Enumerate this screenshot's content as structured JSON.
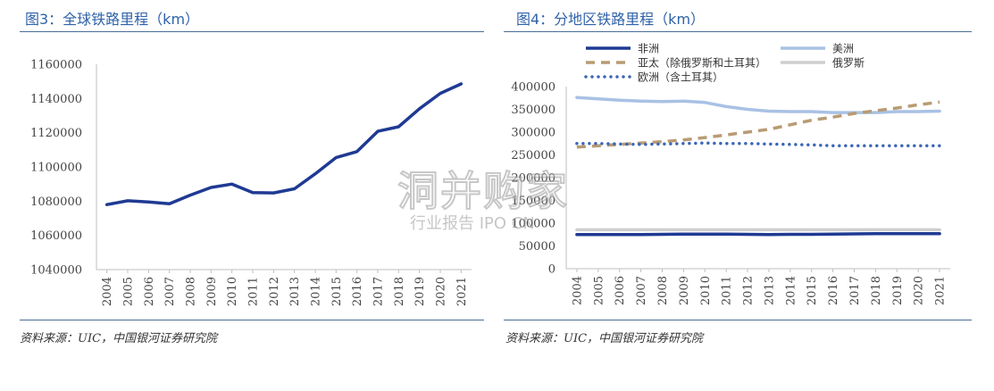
{
  "watermark": {
    "main": "洞并购家",
    "sub": "行业报告 IPO CN"
  },
  "chart_data": [
    {
      "type": "line",
      "title": "图3：全球铁路里程（km）",
      "source": "资料来源：UIC，中国银河证券研究院",
      "x": [
        "2004",
        "2005",
        "2006",
        "2007",
        "2008",
        "2009",
        "2010",
        "2011",
        "2012",
        "2013",
        "2014",
        "2015",
        "2016",
        "2017",
        "2018",
        "2019",
        "2020",
        "2021"
      ],
      "ylim": [
        1040000,
        1160000
      ],
      "yticks": [
        "1040000",
        "1060000",
        "1080000",
        "1100000",
        "1120000",
        "1140000",
        "1160000"
      ],
      "series": [
        {
          "name": "",
          "color": "#1f3a93",
          "values": [
            1078000,
            1080200,
            1079500,
            1078500,
            1083500,
            1088000,
            1090000,
            1085000,
            1084800,
            1087200,
            1096000,
            1105500,
            1109000,
            1120800,
            1123500,
            1134000,
            1143000,
            1148500
          ]
        }
      ],
      "grid": false,
      "legend": "none"
    },
    {
      "type": "line",
      "title": "图4：分地区铁路里程（km）",
      "source": "资料来源：UIC，中国银河证券研究院",
      "x": [
        "2004",
        "2005",
        "2006",
        "2007",
        "2008",
        "2009",
        "2010",
        "2011",
        "2012",
        "2013",
        "2014",
        "2015",
        "2016",
        "2017",
        "2018",
        "2019",
        "2020",
        "2021"
      ],
      "ylim": [
        0,
        400000
      ],
      "yticks": [
        "0",
        "50000",
        "100000",
        "150000",
        "200000",
        "250000",
        "300000",
        "350000",
        "400000"
      ],
      "legend": "top",
      "grid": false,
      "series": [
        {
          "name": "非洲",
          "color": "#1f3a93",
          "style": "solid",
          "values": [
            75000,
            75000,
            75000,
            75000,
            75500,
            76000,
            76000,
            76000,
            75500,
            75000,
            75500,
            75500,
            76000,
            76500,
            77000,
            77000,
            77000,
            77000
          ]
        },
        {
          "name": "美洲",
          "color": "#a9c1e4",
          "style": "solid",
          "values": [
            376000,
            373000,
            370000,
            368000,
            367000,
            368000,
            365000,
            356000,
            350000,
            346000,
            345000,
            345000,
            343000,
            343000,
            343000,
            345000,
            345000,
            346000
          ]
        },
        {
          "name": "亚太（除俄罗斯和土耳其）",
          "color": "#b89b74",
          "style": "dash",
          "values": [
            267000,
            270000,
            273000,
            276000,
            279000,
            283000,
            288000,
            294000,
            300000,
            306000,
            316000,
            326000,
            333000,
            341000,
            347000,
            353000,
            360000,
            366000
          ]
        },
        {
          "name": "俄罗斯",
          "color": "#cfcfcf",
          "style": "solid",
          "values": [
            85500,
            85500,
            85500,
            85500,
            85500,
            85500,
            85500,
            85500,
            85500,
            85500,
            85500,
            85500,
            85500,
            85500,
            85500,
            85500,
            85500,
            85500
          ]
        },
        {
          "name": "欧洲（含土耳其）",
          "color": "#3a66b5",
          "style": "dot",
          "values": [
            275000,
            275000,
            274000,
            273000,
            274000,
            275000,
            276000,
            275000,
            275000,
            274000,
            273000,
            272000,
            270000,
            270000,
            270000,
            270000,
            270000,
            270000
          ]
        }
      ]
    }
  ]
}
